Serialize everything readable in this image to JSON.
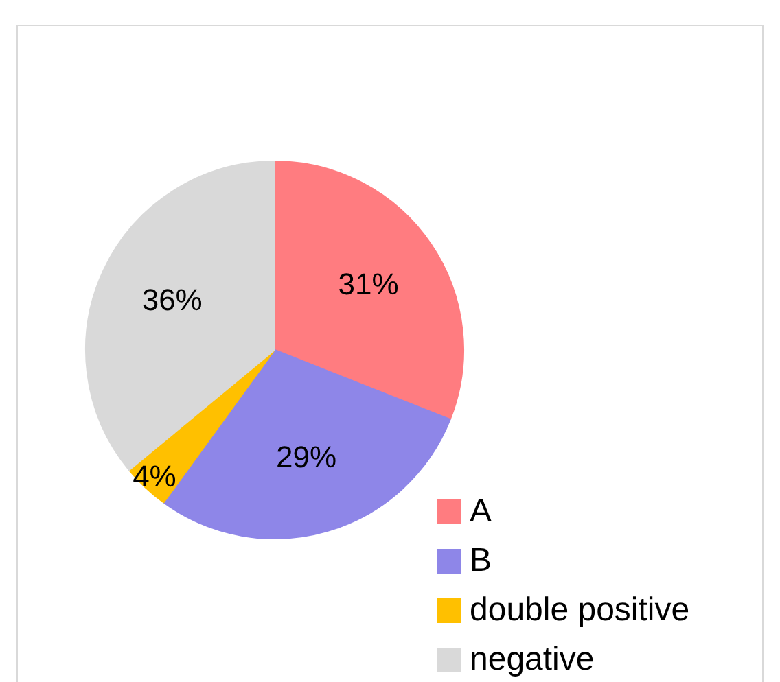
{
  "chart_data": {
    "type": "pie",
    "categories": [
      "A",
      "B",
      "double positive",
      "negative"
    ],
    "values": [
      31,
      29,
      4,
      36
    ],
    "colors": [
      "#ff7c80",
      "#8e86e8",
      "#ffc000",
      "#d9d9d9"
    ],
    "value_labels": [
      "31%",
      "29%",
      "4%",
      "36%"
    ],
    "legend": "bottom right"
  }
}
